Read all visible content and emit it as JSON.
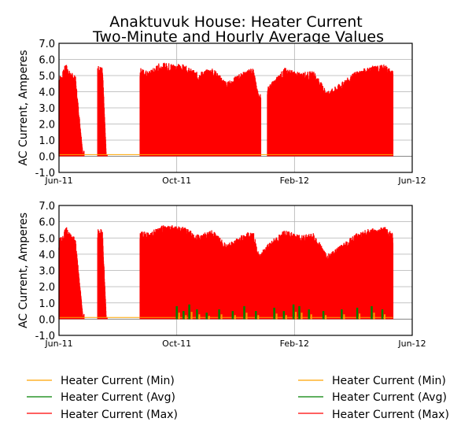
{
  "title_line1": "Anaktuvuk House: Heater Current",
  "title_line2": "Two-Minute and Hourly Average Values",
  "colors": {
    "min": "#ffa500",
    "avg": "#008000",
    "max": "#ff0000",
    "zero_line": "#888888"
  },
  "chart_data": [
    {
      "type": "area",
      "ylabel": "AC Current, Amperes",
      "xlabel": "",
      "ylim": [
        -1.0,
        7.0
      ],
      "y_ticks": [
        "-1.0",
        "0.0",
        "1.0",
        "2.0",
        "3.0",
        "4.0",
        "5.0",
        "6.0",
        "7.0"
      ],
      "x_ticks": [
        "Jun-11",
        "Oct-11",
        "Feb-12",
        "Jun-12"
      ],
      "x_range": [
        "2011-06-01",
        "2012-06-01"
      ],
      "grid": true,
      "series": [
        {
          "name": "Heater Current (Min)",
          "color": "#ffa500"
        },
        {
          "name": "Heater Current (Avg)",
          "color": "#008000"
        },
        {
          "name": "Heater Current (Max)",
          "color": "#ff0000"
        }
      ],
      "max_envelope": [
        [
          "2011-06-01",
          5.0
        ],
        [
          "2011-06-04",
          5.1
        ],
        [
          "2011-06-08",
          5.8
        ],
        [
          "2011-06-12",
          5.3
        ],
        [
          "2011-06-18",
          5.0
        ],
        [
          "2011-06-26",
          0.0
        ],
        [
          "2011-07-11",
          5.7
        ],
        [
          "2011-07-16",
          5.5
        ],
        [
          "2011-07-20",
          0.0
        ],
        [
          "2011-08-24",
          5.5
        ],
        [
          "2011-09-03",
          5.3
        ],
        [
          "2011-09-13",
          5.8
        ],
        [
          "2011-09-24",
          5.8
        ],
        [
          "2011-10-08",
          5.7
        ],
        [
          "2011-10-23",
          5.2
        ],
        [
          "2011-11-07",
          5.5
        ],
        [
          "2011-11-22",
          4.6
        ],
        [
          "2011-12-07",
          5.2
        ],
        [
          "2011-12-19",
          5.5
        ],
        [
          "2011-12-25",
          3.8
        ],
        [
          "2012-01-06",
          4.5
        ],
        [
          "2012-01-21",
          5.5
        ],
        [
          "2012-02-05",
          5.2
        ],
        [
          "2012-02-20",
          5.3
        ],
        [
          "2012-03-05",
          4.0
        ],
        [
          "2012-03-20",
          4.6
        ],
        [
          "2012-04-04",
          5.3
        ],
        [
          "2012-04-19",
          5.6
        ],
        [
          "2012-05-04",
          5.7
        ],
        [
          "2012-05-12",
          5.3
        ]
      ],
      "max_gaps": [
        [
          "2011-06-26",
          "2011-07-11"
        ],
        [
          "2011-07-20",
          "2011-08-24"
        ],
        [
          "2011-12-26",
          "2012-01-03"
        ]
      ],
      "avg_hourly_peaks": []
    },
    {
      "type": "area",
      "ylabel": "AC Current, Amperes",
      "xlabel": "",
      "ylim": [
        -1.0,
        7.0
      ],
      "y_ticks": [
        "-1.0",
        "0.0",
        "1.0",
        "2.0",
        "3.0",
        "4.0",
        "5.0",
        "6.0",
        "7.0"
      ],
      "x_ticks": [
        "Jun-11",
        "Oct-11",
        "Feb-12",
        "Jun-12"
      ],
      "x_range": [
        "2011-06-01",
        "2012-06-01"
      ],
      "grid": true,
      "series": [
        {
          "name": "Heater Current (Min)",
          "color": "#ffa500"
        },
        {
          "name": "Heater Current (Avg)",
          "color": "#008000"
        },
        {
          "name": "Heater Current (Max)",
          "color": "#ff0000"
        }
      ],
      "max_envelope": [
        [
          "2011-06-01",
          5.0
        ],
        [
          "2011-06-04",
          5.1
        ],
        [
          "2011-06-08",
          5.8
        ],
        [
          "2011-06-12",
          5.3
        ],
        [
          "2011-06-18",
          5.0
        ],
        [
          "2011-06-26",
          0.0
        ],
        [
          "2011-07-11",
          5.7
        ],
        [
          "2011-07-16",
          5.5
        ],
        [
          "2011-07-20",
          0.0
        ],
        [
          "2011-08-24",
          5.5
        ],
        [
          "2011-09-03",
          5.3
        ],
        [
          "2011-09-13",
          5.8
        ],
        [
          "2011-09-24",
          5.8
        ],
        [
          "2011-10-08",
          5.7
        ],
        [
          "2011-10-23",
          5.2
        ],
        [
          "2011-11-07",
          5.5
        ],
        [
          "2011-11-22",
          4.6
        ],
        [
          "2011-12-07",
          5.2
        ],
        [
          "2011-12-19",
          5.5
        ],
        [
          "2011-12-25",
          4.0
        ],
        [
          "2012-01-06",
          4.8
        ],
        [
          "2012-01-21",
          5.5
        ],
        [
          "2012-02-05",
          5.2
        ],
        [
          "2012-02-20",
          5.3
        ],
        [
          "2012-03-05",
          4.0
        ],
        [
          "2012-03-20",
          4.6
        ],
        [
          "2012-04-04",
          5.3
        ],
        [
          "2012-04-19",
          5.6
        ],
        [
          "2012-05-04",
          5.7
        ],
        [
          "2012-05-12",
          5.3
        ]
      ],
      "max_gaps": [
        [
          "2011-06-26",
          "2011-07-11"
        ],
        [
          "2011-07-20",
          "2011-08-24"
        ]
      ],
      "avg_hourly_peaks": [
        [
          "2011-10-01",
          0.8
        ],
        [
          "2011-10-08",
          0.5
        ],
        [
          "2011-10-14",
          0.9
        ],
        [
          "2011-10-22",
          0.6
        ],
        [
          "2011-11-01",
          0.4
        ],
        [
          "2011-11-14",
          0.6
        ],
        [
          "2011-11-28",
          0.5
        ],
        [
          "2011-12-10",
          0.8
        ],
        [
          "2011-12-22",
          0.5
        ],
        [
          "2012-01-10",
          0.7
        ],
        [
          "2012-01-20",
          0.5
        ],
        [
          "2012-01-30",
          0.9
        ],
        [
          "2012-02-05",
          0.8
        ],
        [
          "2012-02-15",
          0.6
        ],
        [
          "2012-03-01",
          0.5
        ],
        [
          "2012-03-20",
          0.6
        ],
        [
          "2012-04-05",
          0.7
        ],
        [
          "2012-04-20",
          0.8
        ],
        [
          "2012-05-01",
          0.6
        ]
      ]
    }
  ],
  "legend": {
    "left": [
      "Heater Current (Min)",
      "Heater Current (Avg)",
      "Heater Current (Max)"
    ],
    "right": [
      "Heater Current (Min)",
      "Heater Current (Avg)",
      "Heater Current (Max)"
    ]
  }
}
